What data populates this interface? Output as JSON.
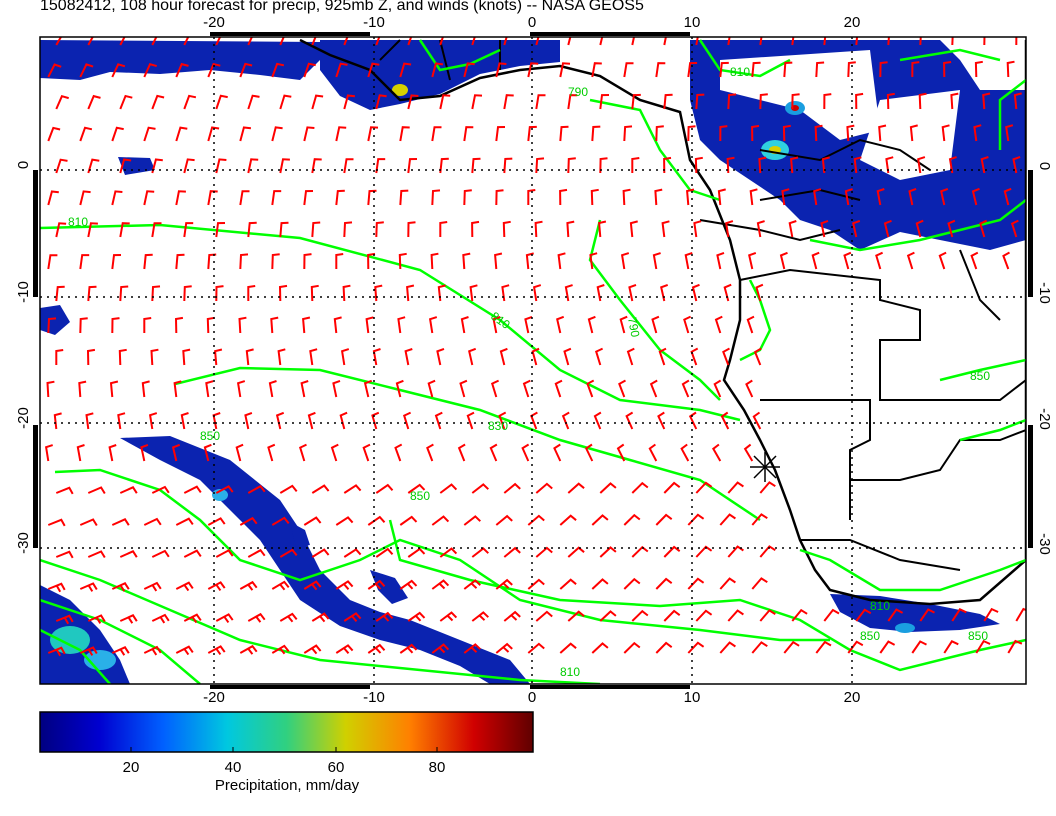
{
  "title": "15082412, 108 hour forecast for precip, 925mb Z, and winds (knots) -- NASA GEOS5",
  "map": {
    "lon_ticks": [
      "-20",
      "-10",
      "0",
      "10",
      "20"
    ],
    "lat_ticks": [
      "0",
      "-10",
      "-20",
      "-30"
    ],
    "lon_range": [
      -31,
      31
    ],
    "lat_range": [
      -40,
      10
    ],
    "contour_labels": [
      "810",
      "810",
      "830",
      "850",
      "850",
      "850",
      "810",
      "790",
      "790",
      "810",
      "850",
      "810",
      "850"
    ],
    "site_marker": "asterisk-marker",
    "colors": {
      "wind_barbs": "#ff0000",
      "contours": "#00ff00",
      "coastlines": "#000000",
      "precip_low": "#000080",
      "precip_high": "#800000"
    }
  },
  "colorbar": {
    "ticks": [
      "20",
      "40",
      "60",
      "80"
    ],
    "range": [
      0,
      98
    ],
    "label": "Precipitation, mm/day"
  }
}
